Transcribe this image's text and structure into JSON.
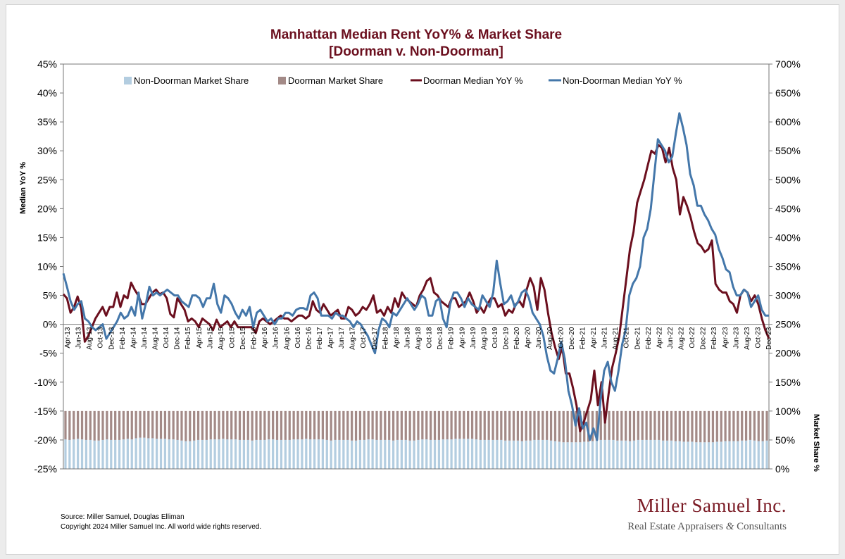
{
  "chart_data": {
    "type": "bar+line",
    "title": "Manhattan Median Rent YoY% & Market Share",
    "subtitle": "[Doorman v. Non-Doorman]",
    "ylabel": "Median YoY %",
    "y2label": "Market Share %",
    "ylim": [
      -25,
      45
    ],
    "y2lim": [
      0,
      700
    ],
    "grid": false,
    "legend_placement": "top",
    "yticks": [
      "45%",
      "40%",
      "35%",
      "30%",
      "25%",
      "20%",
      "15%",
      "10%",
      "5%",
      "0%",
      "-5%",
      "-10%",
      "-15%",
      "-20%",
      "-25%"
    ],
    "y2ticks": [
      "700%",
      "650%",
      "600%",
      "550%",
      "500%",
      "450%",
      "400%",
      "350%",
      "300%",
      "250%",
      "200%",
      "150%",
      "100%",
      "50%",
      "0%"
    ],
    "xtick_labels": [
      "Apr-13",
      "Jun-13",
      "Aug-13",
      "Oct-13",
      "Dec-13",
      "Feb-14",
      "Apr-14",
      "Jun-14",
      "Aug-14",
      "Oct-14",
      "Dec-14",
      "Feb-15",
      "Apr-15",
      "Jun-15",
      "Aug-15",
      "Oct-15",
      "Dec-15",
      "Feb-16",
      "Apr-16",
      "Jun-16",
      "Aug-16",
      "Oct-16",
      "Dec-16",
      "Feb-17",
      "Apr-17",
      "Jun-17",
      "Aug-17",
      "Oct-17",
      "Dec-17",
      "Feb-18",
      "Apr-18",
      "Jun-18",
      "Aug-18",
      "Oct-18",
      "Dec-18",
      "Feb-19",
      "Apr-19",
      "Jun-19",
      "Aug-19",
      "Oct-19",
      "Dec-19",
      "Feb-20",
      "Apr-20",
      "Jun-20",
      "Aug-20",
      "Oct-20",
      "Dec-20",
      "Feb-21",
      "Apr-21",
      "Jun-21",
      "Aug-21",
      "Oct-21",
      "Dec-21",
      "Feb-22",
      "Apr-22",
      "Jun-22",
      "Aug-22",
      "Oct-22",
      "Dec-22",
      "Feb-23",
      "Apr-23",
      "Jun-23",
      "Aug-23",
      "Oct-23",
      "Dec-23"
    ],
    "series": [
      {
        "name": "Non-Doorman Market Share",
        "kind": "bar",
        "color": "#b3cde0",
        "values": [
          51,
          50,
          51,
          52,
          51,
          50,
          50,
          49,
          49,
          50,
          51,
          50,
          50,
          50,
          51,
          52,
          51,
          53,
          54,
          54,
          53,
          53,
          52,
          52,
          52,
          51,
          51,
          50,
          49,
          48,
          48,
          49,
          50,
          50,
          50,
          51,
          51,
          51,
          52,
          51,
          51,
          51,
          50,
          50,
          50,
          49,
          50,
          50,
          50,
          51,
          51,
          50,
          50,
          50,
          50,
          51,
          51,
          51,
          52,
          51,
          51,
          51,
          51,
          50,
          49,
          50,
          50,
          50,
          50,
          49,
          49,
          50,
          50,
          51,
          51,
          50,
          50,
          50,
          50,
          49,
          50,
          50,
          50,
          49,
          49,
          50,
          51,
          51,
          50,
          50,
          50,
          51,
          51,
          51,
          52,
          52,
          52,
          52,
          52,
          51,
          50,
          50,
          50,
          50,
          50,
          50,
          49,
          49,
          49,
          49,
          48,
          49,
          49,
          50,
          50,
          50,
          50,
          49,
          48,
          47,
          46,
          46,
          46,
          46,
          46,
          47,
          47,
          48,
          49,
          50,
          50,
          50,
          50,
          49,
          49,
          49,
          48,
          49,
          50,
          50,
          50,
          50,
          50,
          50,
          49,
          49,
          49,
          48,
          48,
          47,
          47,
          47,
          46,
          46,
          46,
          46,
          46,
          47,
          47,
          48,
          48,
          48,
          48,
          49,
          49,
          50,
          49,
          48,
          48,
          49
        ]
      },
      {
        "name": "Doorman Market Share",
        "kind": "bar",
        "color": "#a38a87",
        "values": [
          49,
          50,
          49,
          48,
          49,
          50,
          50,
          51,
          51,
          50,
          49,
          50,
          50,
          50,
          49,
          48,
          49,
          47,
          46,
          46,
          47,
          47,
          48,
          48,
          48,
          49,
          49,
          50,
          51,
          52,
          52,
          51,
          50,
          50,
          50,
          49,
          49,
          49,
          48,
          49,
          49,
          49,
          50,
          50,
          50,
          51,
          50,
          50,
          50,
          49,
          49,
          50,
          50,
          50,
          50,
          49,
          49,
          49,
          48,
          49,
          49,
          49,
          49,
          50,
          51,
          50,
          50,
          50,
          50,
          51,
          51,
          50,
          50,
          49,
          49,
          50,
          50,
          50,
          50,
          51,
          50,
          50,
          50,
          51,
          51,
          50,
          49,
          49,
          50,
          50,
          50,
          49,
          49,
          49,
          48,
          48,
          48,
          48,
          48,
          49,
          50,
          50,
          50,
          50,
          50,
          50,
          51,
          51,
          51,
          51,
          52,
          51,
          51,
          50,
          50,
          50,
          50,
          51,
          52,
          53,
          54,
          54,
          54,
          54,
          54,
          53,
          53,
          52,
          51,
          50,
          50,
          50,
          50,
          51,
          51,
          51,
          52,
          51,
          50,
          50,
          50,
          50,
          50,
          50,
          51,
          51,
          51,
          52,
          52,
          53,
          53,
          53,
          54,
          54,
          54,
          54,
          54,
          53,
          53,
          52,
          52,
          52,
          52,
          51,
          51,
          50,
          51,
          52,
          52,
          51
        ]
      },
      {
        "name": "Doorman Median YoY %",
        "kind": "line",
        "color": "#6b0f1e",
        "values": [
          5.2,
          4.5,
          2.0,
          3.0,
          4.8,
          2.8,
          -3.0,
          -2.0,
          -0.5,
          1.0,
          2.0,
          3.0,
          1.5,
          3.0,
          3.0,
          5.5,
          3.0,
          5.0,
          4.5,
          7.2,
          6.0,
          5.0,
          3.5,
          3.5,
          4.5,
          5.5,
          6.0,
          5.2,
          5.5,
          4.5,
          1.8,
          1.2,
          4.5,
          3.5,
          2.5,
          0.5,
          1.0,
          0.5,
          -0.5,
          1.0,
          0.5,
          0.0,
          -1.0,
          0.8,
          -0.5,
          0.0,
          0.5,
          -0.5,
          0.5,
          -0.5,
          -0.5,
          -0.5,
          -0.5,
          -0.5,
          -1.5,
          0.5,
          1.0,
          0.5,
          0.0,
          0.5,
          1.0,
          1.5,
          1.0,
          1.0,
          0.5,
          1.0,
          1.5,
          1.5,
          1.0,
          1.5,
          4.0,
          2.5,
          2.0,
          3.5,
          2.5,
          1.5,
          2.0,
          2.5,
          1.0,
          1.0,
          3.0,
          2.5,
          1.5,
          2.0,
          3.0,
          2.5,
          3.5,
          5.0,
          2.0,
          2.5,
          1.5,
          3.0,
          2.0,
          4.5,
          3.0,
          5.5,
          4.5,
          4.0,
          3.5,
          3.0,
          5.0,
          6.0,
          7.5,
          8.0,
          5.5,
          5.0,
          4.0,
          3.5,
          3.0,
          4.5,
          4.5,
          3.0,
          3.5,
          4.0,
          5.5,
          4.0,
          2.0,
          3.0,
          2.0,
          3.5,
          4.5,
          4.5,
          3.0,
          3.5,
          1.5,
          2.5,
          2.0,
          3.5,
          4.0,
          3.0,
          6.0,
          8.0,
          6.5,
          2.5,
          8.0,
          6.0,
          2.0,
          -1.5,
          -4.0,
          -6.0,
          -4.0,
          -8.5,
          -8.5,
          -11.0,
          -14.0,
          -18.5,
          -17.0,
          -15.0,
          -13.0,
          -8.0,
          -14.0,
          -10.0,
          -17.0,
          -12.0,
          -7.5,
          -5.0,
          -2.0,
          3.0,
          8.0,
          13.0,
          16.0,
          21.0,
          23.0,
          25.0,
          27.5,
          30.0,
          29.5,
          31.0,
          30.5,
          28.0,
          30.5,
          27.0,
          25.0,
          19.0,
          22.0,
          20.5,
          18.5,
          16.0,
          14.0,
          13.5,
          12.5,
          13.0,
          14.5,
          7.0,
          6.0,
          5.5,
          5.5,
          4.0,
          3.5,
          2.0,
          5.0,
          6.0,
          5.5,
          4.0,
          5.0,
          3.5,
          1.0,
          -1.0,
          -2.5
        ]
      },
      {
        "name": "Non-Doorman Median YoY %",
        "kind": "line",
        "color": "#4477aa",
        "values": [
          8.8,
          6.5,
          4.0,
          2.5,
          3.5,
          4.0,
          1.0,
          0.5,
          -0.5,
          -1.0,
          -0.5,
          0.0,
          -2.5,
          -1.5,
          -0.5,
          0.5,
          2.0,
          1.0,
          1.5,
          3.0,
          1.5,
          5.5,
          1.0,
          3.5,
          6.5,
          5.0,
          5.5,
          5.0,
          5.5,
          6.0,
          5.5,
          5.0,
          5.0,
          4.0,
          3.5,
          3.0,
          5.0,
          5.0,
          4.5,
          3.0,
          4.5,
          4.5,
          7.0,
          3.5,
          2.0,
          5.0,
          4.5,
          3.5,
          2.0,
          1.0,
          2.5,
          1.5,
          3.0,
          -0.5,
          2.0,
          2.5,
          1.5,
          0.5,
          1.0,
          0.0,
          1.0,
          1.0,
          2.0,
          2.0,
          1.5,
          2.5,
          2.8,
          2.8,
          2.5,
          5.0,
          5.5,
          4.5,
          1.5,
          1.5,
          1.5,
          1.0,
          2.0,
          1.5,
          1.5,
          1.0,
          0.5,
          -0.5,
          0.5,
          0.0,
          -1.0,
          -2.0,
          -3.5,
          -5.0,
          -1.0,
          1.0,
          0.5,
          -0.5,
          2.0,
          1.5,
          2.5,
          3.5,
          4.5,
          3.5,
          2.5,
          3.5,
          5.0,
          4.5,
          1.5,
          1.5,
          4.0,
          4.5,
          1.0,
          -0.5,
          3.5,
          5.5,
          5.5,
          4.5,
          3.0,
          4.5,
          3.5,
          3.0,
          2.5,
          5.0,
          4.0,
          3.0,
          5.5,
          11.0,
          7.0,
          3.5,
          4.0,
          5.0,
          3.0,
          4.0,
          5.5,
          6.0,
          4.5,
          2.0,
          1.0,
          0.0,
          -2.0,
          -5.5,
          -8.0,
          -8.5,
          -6.0,
          -3.0,
          -6.0,
          -11.5,
          -14.0,
          -17.5,
          -14.5,
          -18.0,
          -17.0,
          -20.0,
          -18.0,
          -20.0,
          -13.0,
          -8.0,
          -6.5,
          -10.0,
          -11.5,
          -8.0,
          -3.5,
          -1.0,
          5.0,
          7.0,
          8.0,
          10.0,
          15.0,
          16.5,
          20.0,
          26.0,
          32.0,
          31.0,
          30.0,
          28.0,
          29.0,
          33.0,
          36.5,
          34.0,
          31.0,
          26.0,
          24.0,
          20.5,
          20.5,
          19.0,
          18.0,
          16.5,
          15.5,
          13.0,
          11.5,
          9.5,
          9.0,
          6.5,
          5.0,
          5.0,
          6.0,
          5.5,
          3.0,
          4.0,
          5.0,
          2.5,
          1.5,
          1.5
        ]
      }
    ]
  },
  "source_text": "Source: Miller Samuel, Douglas Elliman",
  "copyright_text": "Copyright 2024 Miller Samuel Inc.  All world wide rights reserved.",
  "brand": {
    "name": "Miller Samuel Inc.",
    "tagline_1": "Real Estate Appraisers ",
    "tagline_amp": "&",
    "tagline_2": " Consultants"
  }
}
